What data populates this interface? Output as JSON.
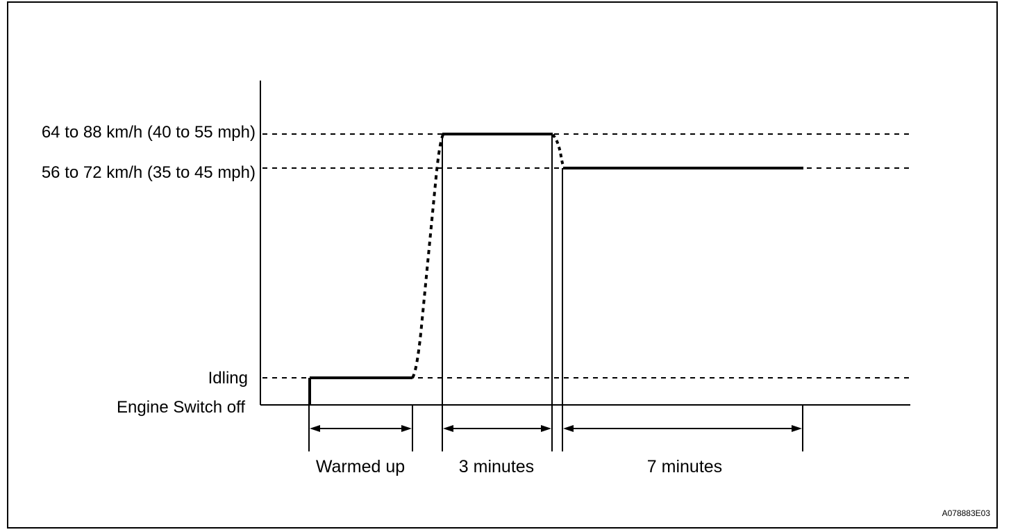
{
  "levels": {
    "high": "64 to 88 km/h (40 to 55 mph)",
    "mid": "56 to 72 km/h (35 to 45 mph)",
    "idling": "Idling",
    "off": "Engine Switch off"
  },
  "phases": {
    "warmed_up": "Warmed up",
    "three_minutes": "3 minutes",
    "seven_minutes": "7 minutes"
  },
  "figure_code": "A078883E03"
}
